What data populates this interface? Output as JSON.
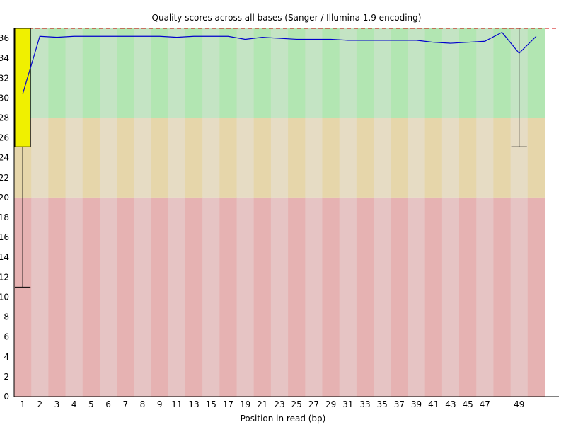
{
  "chart_data": {
    "type": "box",
    "title": "Quality scores across all bases (Sanger / Illumina 1.9 encoding)",
    "xlabel": "Position in read (bp)",
    "ylabel": "",
    "ylim": [
      0,
      37
    ],
    "y_ticks": [
      0,
      2,
      4,
      6,
      8,
      10,
      12,
      14,
      16,
      18,
      20,
      22,
      24,
      26,
      28,
      30,
      32,
      34,
      36
    ],
    "x_tick_labels": [
      "1",
      "2",
      "3",
      "4",
      "5",
      "6",
      "7",
      "8",
      "9",
      "11",
      "13",
      "15",
      "17",
      "19",
      "21",
      "23",
      "25",
      "27",
      "29",
      "31",
      "33",
      "35",
      "37",
      "39",
      "41",
      "43",
      "45",
      "47",
      "49"
    ],
    "quality_bands": [
      {
        "name": "good",
        "from": 28,
        "to": 37,
        "colors": [
          "#b2e6b2",
          "#c4e4c4"
        ]
      },
      {
        "name": "reasonable",
        "from": 20,
        "to": 28,
        "colors": [
          "#e6d6aa",
          "#e6dcc4"
        ]
      },
      {
        "name": "poor",
        "from": 0,
        "to": 20,
        "colors": [
          "#e6b2b2",
          "#e6c4c4"
        ]
      }
    ],
    "grid": false,
    "legend": "none",
    "colors": {
      "mean_line": "#0000cc",
      "box_fill": "#f0f000",
      "whisker": "#000000",
      "max_line": "#cc0000"
    },
    "series": [
      {
        "x": [
          "1",
          "2",
          "3",
          "4",
          "5",
          "6",
          "7",
          "8",
          "9",
          "10-11",
          "12-13",
          "14-15",
          "16-17",
          "18-19",
          "20-21",
          "22-23",
          "24-25",
          "26-27",
          "28-29",
          "30-31",
          "32-33",
          "34-35",
          "36-37",
          "38-39",
          "40-41",
          "42-43",
          "44-45",
          "46-47",
          "48",
          "49",
          "50"
        ],
        "mean": [
          30.4,
          36.2,
          36.1,
          36.2,
          36.2,
          36.2,
          36.2,
          36.2,
          36.2,
          36.1,
          36.2,
          36.2,
          36.2,
          35.9,
          36.1,
          36.0,
          35.9,
          35.9,
          35.9,
          35.8,
          35.8,
          35.8,
          35.8,
          35.8,
          35.6,
          35.5,
          35.6,
          35.7,
          36.6,
          34.5,
          36.2
        ],
        "boxes": [
          {
            "x": "1",
            "low": 11,
            "q1": 25.1,
            "median": 37,
            "q3": 37,
            "high": 37
          },
          {
            "x": "49",
            "low": 25.1,
            "q1": 37,
            "median": 37,
            "q3": 37,
            "high": 37
          }
        ]
      }
    ]
  }
}
